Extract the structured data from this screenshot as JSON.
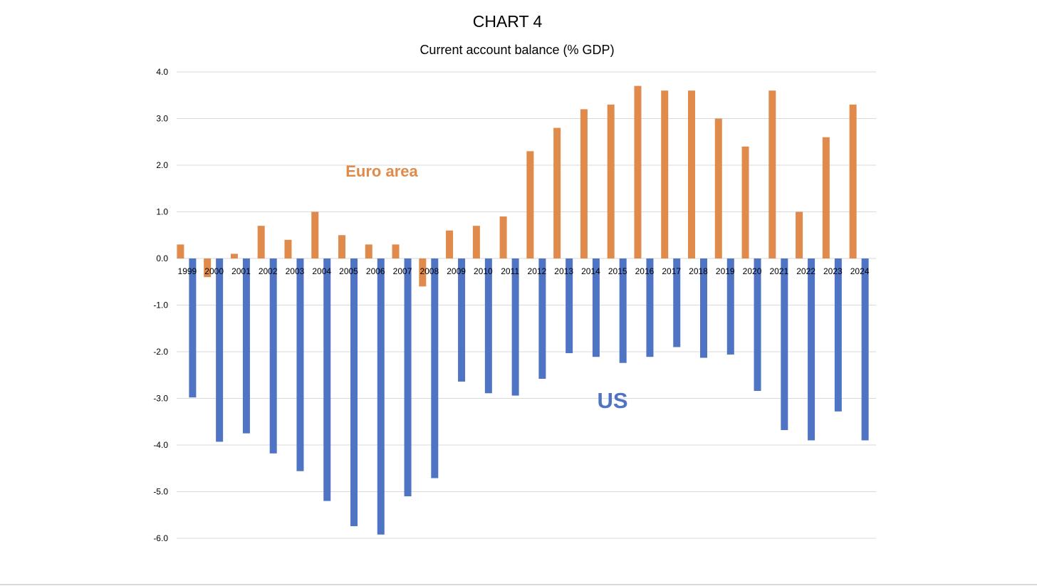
{
  "chart_data": {
    "type": "bar",
    "title": "CHART 4",
    "subtitle": "Current account balance (% GDP)",
    "xlabel": "",
    "ylabel": "",
    "ylim": [
      -6.0,
      4.0
    ],
    "yticks": [
      "4.0",
      "3.0",
      "2.0",
      "1.0",
      "0.0",
      "-1.0",
      "-2.0",
      "-3.0",
      "-4.0",
      "-5.0",
      "-6.0"
    ],
    "categories": [
      "1999",
      "2000",
      "2001",
      "2002",
      "2003",
      "2004",
      "2005",
      "2006",
      "2007",
      "2008",
      "2009",
      "2010",
      "2011",
      "2012",
      "2013",
      "2014",
      "2015",
      "2016",
      "2017",
      "2018",
      "2019",
      "2020",
      "2021",
      "2022",
      "2023",
      "2024"
    ],
    "grid": true,
    "legend": "none",
    "series": [
      {
        "name": "Euro area",
        "color": "#e08a4b",
        "values": [
          0.3,
          -0.4,
          0.1,
          0.7,
          0.4,
          1.0,
          0.5,
          0.3,
          0.3,
          -0.6,
          0.6,
          0.7,
          0.9,
          2.3,
          2.8,
          3.2,
          3.3,
          3.7,
          3.6,
          3.6,
          3.0,
          2.4,
          3.6,
          1.0,
          2.6,
          3.3
        ]
      },
      {
        "name": "US",
        "color": "#4f74c4",
        "values": [
          -2.98,
          -3.93,
          -3.75,
          -4.18,
          -4.56,
          -5.2,
          -5.74,
          -5.92,
          -5.1,
          -4.71,
          -2.64,
          -2.89,
          -2.94,
          -2.58,
          -2.03,
          -2.11,
          -2.24,
          -2.11,
          -1.9,
          -2.13,
          -2.06,
          -2.84,
          -3.68,
          -3.9,
          -3.28,
          -3.9
        ]
      }
    ],
    "annotations": [
      {
        "text": "Euro area",
        "series": "Euro area",
        "color": "#e08a4b"
      },
      {
        "text": "US",
        "series": "US",
        "color": "#4f74c4"
      }
    ]
  }
}
